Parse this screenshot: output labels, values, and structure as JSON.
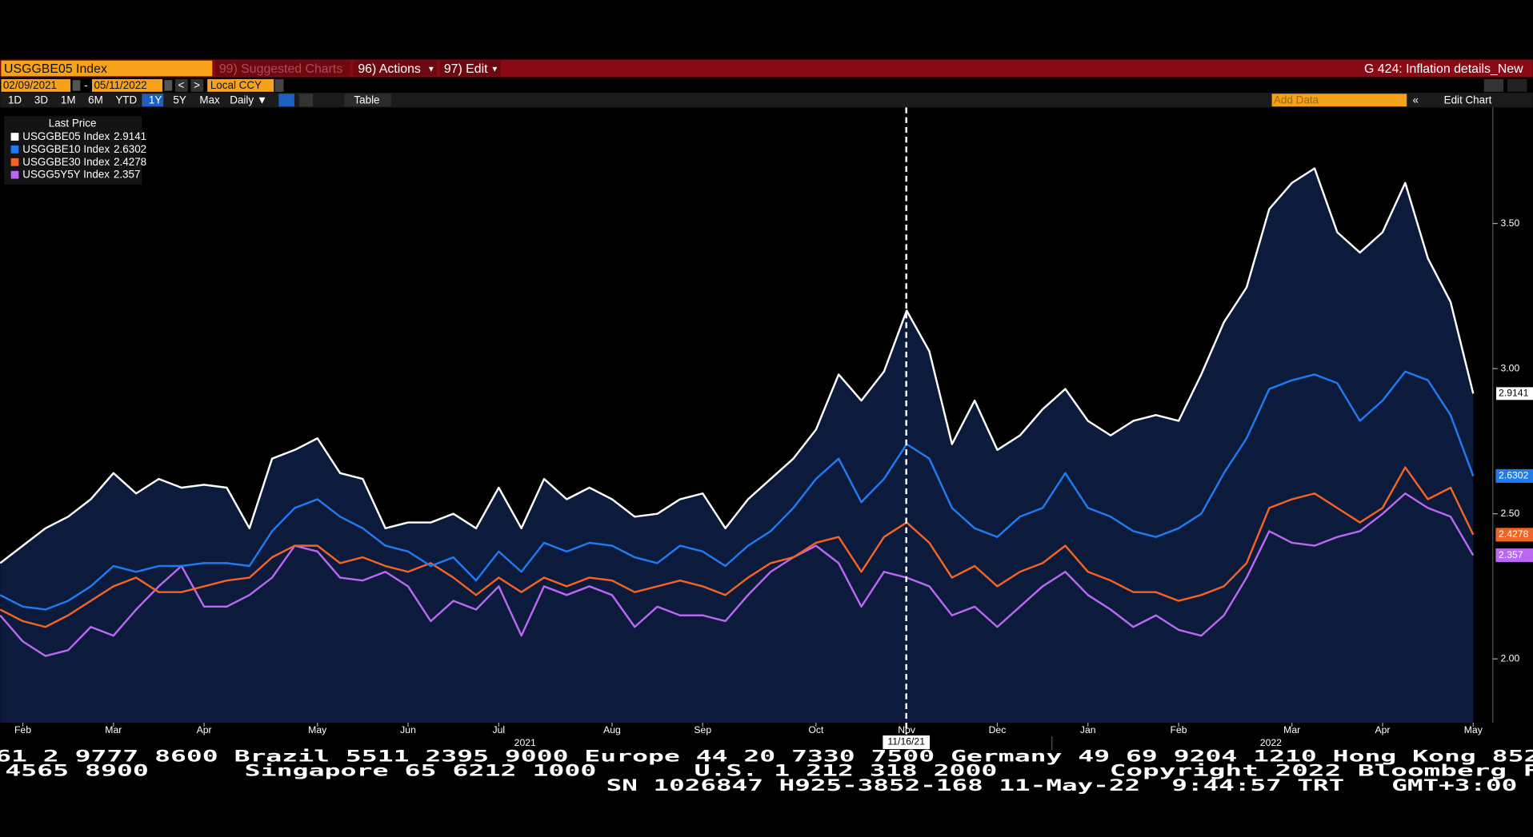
{
  "toolbar": {
    "security": "USGGBE05 Index",
    "suggested": "99) Suggested Charts",
    "actions": "96) Actions",
    "edit": "97) Edit",
    "page_title": "G 424: Inflation details_New"
  },
  "dates": {
    "start": "02/09/2021",
    "separator": "-",
    "end": "05/11/2022",
    "currency": "Local CCY"
  },
  "periods": [
    "1D",
    "3D",
    "1M",
    "6M",
    "YTD",
    "1Y",
    "5Y",
    "Max"
  ],
  "active_period": "1Y",
  "frequency": "Daily ▼",
  "table": "Table",
  "add_data": "Add Data",
  "edit_chart": "Edit Chart",
  "chart_data": {
    "type": "line",
    "legend_title": "Last Price",
    "area_under_first": true,
    "categories": [
      null,
      "Feb",
      null,
      null,
      null,
      "Mar",
      null,
      null,
      null,
      "Apr",
      null,
      null,
      null,
      null,
      "May",
      null,
      null,
      null,
      "Jun",
      null,
      null,
      null,
      "Jul",
      null,
      null,
      null,
      null,
      "Aug",
      null,
      null,
      null,
      "Sep",
      null,
      null,
      null,
      null,
      "Oct",
      null,
      null,
      null,
      "Nov",
      null,
      null,
      null,
      "Dec",
      null,
      null,
      null,
      "Jan",
      null,
      null,
      null,
      "Feb",
      null,
      null,
      null,
      null,
      "Mar",
      null,
      null,
      null,
      "Apr",
      null,
      null,
      null,
      "May"
    ],
    "years": [
      "2021",
      "2022"
    ],
    "crosshair_label": "11/16/21",
    "ylim": [
      1.78,
      3.9
    ],
    "yticks": [
      {
        "value": 2,
        "label": "2.00"
      },
      {
        "value": 2.5,
        "label": "2.50"
      },
      {
        "value": 3,
        "label": "3.00"
      },
      {
        "value": 3.5,
        "label": "3.50"
      }
    ],
    "series": [
      {
        "name": "USGGBE05 Index",
        "color": "#ffffff",
        "values": [
          2.33,
          2.39,
          2.45,
          2.49,
          2.55,
          2.64,
          2.57,
          2.62,
          2.59,
          2.6,
          2.59,
          2.45,
          2.69,
          2.72,
          2.76,
          2.64,
          2.62,
          2.45,
          2.47,
          2.47,
          2.5,
          2.45,
          2.59,
          2.45,
          2.62,
          2.55,
          2.59,
          2.55,
          2.49,
          2.5,
          2.55,
          2.57,
          2.45,
          2.55,
          2.62,
          2.69,
          2.79,
          2.98,
          2.89,
          2.99,
          3.2,
          3.06,
          2.74,
          2.89,
          2.72,
          2.77,
          2.86,
          2.93,
          2.82,
          2.77,
          2.82,
          2.84,
          2.82,
          2.98,
          3.16,
          3.28,
          3.55,
          3.64,
          3.69,
          3.47,
          3.4,
          3.47,
          3.64,
          3.38,
          3.23,
          2.9141
        ]
      },
      {
        "name": "USGGBE10 Index",
        "color": "#1f7bf0",
        "values": [
          2.22,
          2.18,
          2.17,
          2.2,
          2.25,
          2.32,
          2.3,
          2.32,
          2.32,
          2.33,
          2.33,
          2.32,
          2.44,
          2.52,
          2.55,
          2.49,
          2.45,
          2.39,
          2.37,
          2.32,
          2.35,
          2.27,
          2.37,
          2.3,
          2.4,
          2.37,
          2.4,
          2.39,
          2.35,
          2.33,
          2.39,
          2.37,
          2.32,
          2.39,
          2.44,
          2.52,
          2.62,
          2.69,
          2.54,
          2.62,
          2.74,
          2.69,
          2.52,
          2.45,
          2.42,
          2.49,
          2.52,
          2.64,
          2.52,
          2.49,
          2.44,
          2.42,
          2.45,
          2.5,
          2.64,
          2.76,
          2.93,
          2.96,
          2.98,
          2.95,
          2.82,
          2.89,
          2.99,
          2.96,
          2.84,
          2.6302
        ]
      },
      {
        "name": "USGGBE30 Index",
        "color": "#f26424",
        "values": [
          2.17,
          2.13,
          2.11,
          2.15,
          2.2,
          2.25,
          2.28,
          2.23,
          2.23,
          2.25,
          2.27,
          2.28,
          2.35,
          2.39,
          2.39,
          2.33,
          2.35,
          2.32,
          2.3,
          2.33,
          2.28,
          2.22,
          2.28,
          2.23,
          2.28,
          2.25,
          2.28,
          2.27,
          2.23,
          2.25,
          2.27,
          2.25,
          2.22,
          2.28,
          2.33,
          2.35,
          2.4,
          2.42,
          2.3,
          2.42,
          2.47,
          2.4,
          2.28,
          2.32,
          2.25,
          2.3,
          2.33,
          2.39,
          2.3,
          2.27,
          2.23,
          2.23,
          2.2,
          2.22,
          2.25,
          2.33,
          2.52,
          2.55,
          2.57,
          2.52,
          2.47,
          2.52,
          2.66,
          2.55,
          2.59,
          2.4278
        ]
      },
      {
        "name": "USGG5Y5Y Index",
        "color": "#b968f2",
        "values": [
          2.15,
          2.06,
          2.01,
          2.03,
          2.11,
          2.08,
          2.17,
          2.25,
          2.32,
          2.18,
          2.18,
          2.22,
          2.28,
          2.39,
          2.37,
          2.28,
          2.27,
          2.3,
          2.25,
          2.13,
          2.2,
          2.17,
          2.25,
          2.08,
          2.25,
          2.22,
          2.25,
          2.22,
          2.11,
          2.18,
          2.15,
          2.15,
          2.13,
          2.22,
          2.3,
          2.35,
          2.39,
          2.33,
          2.18,
          2.3,
          2.28,
          2.25,
          2.15,
          2.18,
          2.11,
          2.18,
          2.25,
          2.3,
          2.22,
          2.17,
          2.11,
          2.15,
          2.1,
          2.08,
          2.15,
          2.28,
          2.44,
          2.4,
          2.39,
          2.42,
          2.44,
          2.5,
          2.57,
          2.52,
          2.49,
          2.357
        ]
      }
    ]
  },
  "footer": {
    "line1": "61 2 9777 8600 Brazil 5511 2395 9000 Europe 44 20 7330 7500 Germany 49 69 9204 1210 Hong Kong 852",
    "line2": [
      "4565 8900",
      "Singapore 65 6212 1000",
      "U.S. 1 212 318 2000",
      "Copyright 2022 Bloomberg F"
    ],
    "line3": "SN 1026847 H925-3852-168 11-May-22  9:44:57 TRT   GMT+3:00"
  }
}
